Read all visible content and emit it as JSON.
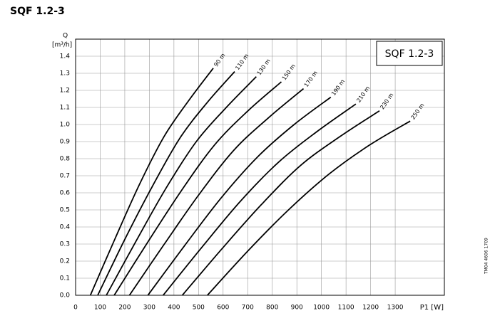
{
  "heading": "SQF 1.2-3",
  "side_note": "TM04 4606 1709",
  "chart_data": {
    "type": "line",
    "title": "SQF 1.2-3",
    "y_label": [
      "Q",
      "[m³/h]"
    ],
    "x_label": "P1 [W]",
    "xlim": [
      0,
      1500
    ],
    "ylim": [
      0,
      1.5
    ],
    "xticks": [
      0,
      100,
      200,
      300,
      400,
      500,
      600,
      700,
      800,
      900,
      1000,
      1100,
      1200,
      1300
    ],
    "yticks": [
      {
        "value": 0,
        "label": "0.0"
      },
      0.1,
      0.2,
      0.3,
      0.4,
      0.5,
      0.6,
      0.7,
      0.8,
      0.9,
      {
        "value": 1,
        "label": "1.0"
      },
      1.1,
      1.2,
      1.3,
      1.4
    ],
    "grid": true,
    "color": "#000000",
    "series": [
      {
        "name": "90 m",
        "x": [
          60,
          160,
          260,
          360,
          460,
          560
        ],
        "values": [
          0,
          0.33,
          0.65,
          0.93,
          1.14,
          1.33
        ]
      },
      {
        "name": "110 m",
        "x": [
          90,
          201,
          313,
          424,
          536,
          647
        ],
        "values": [
          0,
          0.33,
          0.64,
          0.92,
          1.13,
          1.31
        ]
      },
      {
        "name": "130 m",
        "x": [
          125,
          247,
          369,
          491,
          613,
          735
        ],
        "values": [
          0,
          0.32,
          0.63,
          0.9,
          1.1,
          1.28
        ]
      },
      {
        "name": "150 m",
        "x": [
          157,
          293,
          429,
          565,
          701,
          837
        ],
        "values": [
          0,
          0.31,
          0.61,
          0.88,
          1.08,
          1.25
        ]
      },
      {
        "name": "170 m",
        "x": [
          219,
          361,
          502,
          644,
          785,
          927
        ],
        "values": [
          0,
          0.3,
          0.59,
          0.85,
          1.04,
          1.21
        ]
      },
      {
        "name": "190 m",
        "x": [
          294,
          443,
          592,
          740,
          889,
          1038
        ],
        "values": [
          0,
          0.29,
          0.57,
          0.81,
          1.0,
          1.16
        ]
      },
      {
        "name": "210 m",
        "x": [
          356,
          513,
          670,
          826,
          983,
          1140
        ],
        "values": [
          0,
          0.28,
          0.55,
          0.78,
          0.96,
          1.12
        ]
      },
      {
        "name": "230 m",
        "x": [
          434,
          594,
          755,
          915,
          1076,
          1236
        ],
        "values": [
          0,
          0.27,
          0.53,
          0.76,
          0.93,
          1.08
        ]
      },
      {
        "name": "250 m",
        "x": [
          536,
          701,
          866,
          1031,
          1196,
          1361
        ],
        "values": [
          0,
          0.26,
          0.5,
          0.71,
          0.88,
          1.02
        ]
      }
    ]
  }
}
